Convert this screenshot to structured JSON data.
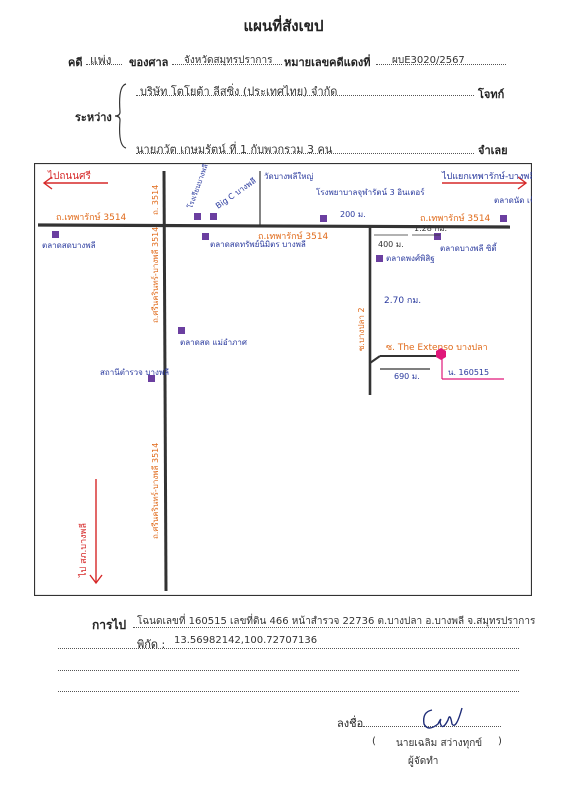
{
  "header": {
    "title": "แผนที่สังเขป",
    "case_label": "คดี",
    "case_type": "แพ่ง",
    "court_label": "ของศาล",
    "court_value": "จังหวัดสมุทรปราการ",
    "case_no_label": "หมายเลขคดีแดงที่",
    "case_no_value": "ผบE3020/2567",
    "between_label": "ระหว่าง",
    "plaintiff": "บริษัท โตโยต้า ลีสซิ่ง (ประเทศไทย) จำกัด",
    "plaintiff_role": "โจทก์",
    "defendant": "นายภวัต เกษมรัตน์ ที่ 1 กับพวกรวม 3 คน",
    "defendant_role": "จำเลย"
  },
  "map": {
    "dir_left": "ไปถนนศรี",
    "dir_right": "ไปแยกเทพารักษ์-บางพลี",
    "dir_down": "ไป สภ.บางพลี",
    "road_main_left": "ถ.เทพารักษ์ 3514",
    "road_main_mid": "ถ.เทพารักษ์ 3514",
    "road_main_right": "ถ.เทพารักษ์ 3514",
    "road_v1_top": "ถ. 3514",
    "road_v1_a": "ถ.ศรีนครินทร์-บางพลี 3514",
    "road_v1_b": "ถ.ศรีนครินทร์-บางพลี 3514",
    "road_v2": "ซ.บางปลา 2",
    "soi_target": "ซ. The Extenso บางปลา",
    "lm_market_west": "ตลาดสดบางพลี",
    "lm_school": "โรงเรียนบางพลี",
    "lm_bigc": "Big C บางพลี",
    "lm_temple": "วัดบางพลีใหญ่",
    "lm_hospital": "โรงพยาบาลจุฬารัตน์ 3 อินเตอร์",
    "lm_market_mid": "ตลาดสดทรัพย์นิมิตร บางพลี",
    "lm_market_sq": "ตลาดสด แม่อำภาศ",
    "lm_district": "สถานีตำรวจ บางพลี",
    "lm_market_east": "ตลาดพงศ์พิสิฐ",
    "lm_market_east2": "ตลาดบางพลี ซิตี้",
    "lm_far_right": "ตลาดนัด เจ๊จิ๋ม",
    "dist_200": "200 ม.",
    "dist_400": "400 ม.",
    "dist_128": "1.28 กม.",
    "dist_270": "2.70 กม.",
    "dist_690": "690 ม.",
    "target_label": "น. 160515"
  },
  "footer": {
    "to_label": "การไป",
    "to_value": "โฉนดเลขที่ 160515 เลขที่ดิน 466 หน้าสำรวจ 22736 ต.บางปลา อ.บางพลี จ.สมุทรปราการ",
    "coord_label": "พิกัด :",
    "coord_value": "13.56982142,100.72707136",
    "sign_label": "ลงชื่อ",
    "signer": "นายเฉลิม  สว่างทุกข์",
    "role": "ผู้จัดทำ",
    "paren_open": "(",
    "paren_close": ")"
  },
  "colors": {
    "road": "#333333",
    "arrow_red": "#d62828",
    "text_blue": "#2a3a9e",
    "road_orange": "#e06a1a",
    "marker_purple": "#6b3fa0",
    "target_pink": "#e0177a"
  }
}
